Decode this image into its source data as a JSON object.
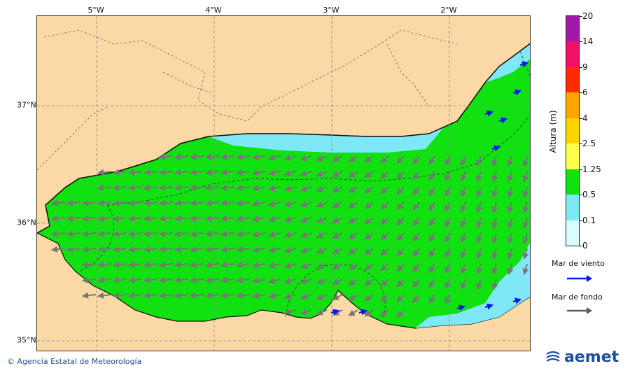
{
  "map": {
    "lon_labels": [
      "5°W",
      "4°W",
      "3°W",
      "2°W"
    ],
    "lat_labels": [
      "37°N",
      "36°N",
      "35°N"
    ]
  },
  "legend": {
    "title": "Altura (m)",
    "ticks": [
      "0",
      "0.1",
      "0.5",
      "1.25",
      "2.5",
      "4",
      "6",
      "9",
      "14",
      "20"
    ],
    "colors": [
      "#d8fdfd",
      "#7fe8f6",
      "#11e011",
      "#ffff4d",
      "#ffd400",
      "#ffa500",
      "#ff2a00",
      "#ee1166",
      "#a01aa8"
    ]
  },
  "arrows": {
    "wind_label": "Mar de viento",
    "wind_color": "#0018e6",
    "swell_label": "Mar de fondo",
    "swell_color": "#5a5a5a"
  },
  "credit": "© Agencia Estatal de Meteorología",
  "logo_text": "aemet",
  "icons": {
    "logo": "aemet-logo-icon",
    "credit": "copyright-icon"
  }
}
